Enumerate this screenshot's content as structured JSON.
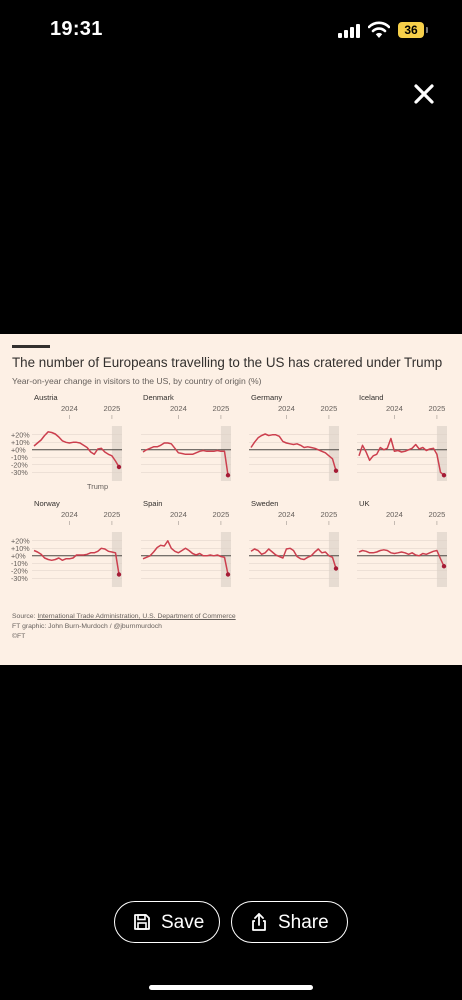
{
  "status_bar": {
    "time": "19:31",
    "battery": "36"
  },
  "chart_card": {
    "title": "The number of Europeans travelling to the US has cratered under Trump",
    "subtitle": "Year-on-year change in visitors to the US, by country of origin (%)",
    "source_prefix": "Source: ",
    "source_link": "International Trade Administration, U.S. Department of Commerce",
    "graphic_credit": "FT graphic: John Burn-Murdoch / @jburnmurdoch",
    "copyright": "©FT"
  },
  "chart_data": {
    "type": "line",
    "y_ticks": [
      "+20%",
      "+10%",
      "+0%",
      "-10%",
      "-20%",
      "-30%"
    ],
    "y_range": [
      -35,
      25
    ],
    "x_tick_labels": [
      "2024",
      "2025"
    ],
    "annotation": "Trump",
    "colors": {
      "line": "#cc3f4e",
      "end_dot": "#a51c36",
      "shade": "#e7dcd2",
      "zero_line": "#4a4643",
      "grid": "#ddd1c6"
    },
    "x": [
      "2023-03",
      "2023-04",
      "2023-05",
      "2023-06",
      "2023-07",
      "2023-08",
      "2023-09",
      "2023-10",
      "2023-11",
      "2023-12",
      "2024-01",
      "2024-02",
      "2024-03",
      "2024-04",
      "2024-05",
      "2024-06",
      "2024-07",
      "2024-08",
      "2024-09",
      "2024-10",
      "2024-11",
      "2024-12",
      "2025-01",
      "2025-02",
      "2025-03"
    ],
    "panels": [
      {
        "country": "Austria",
        "values": [
          5,
          9,
          13,
          19,
          24,
          23,
          21,
          17,
          12,
          10,
          9,
          10,
          10,
          9,
          6,
          3,
          -3,
          -6,
          1,
          2,
          -3,
          -6,
          -8,
          -15,
          -23
        ]
      },
      {
        "country": "Denmark",
        "values": [
          -3,
          0,
          2,
          4,
          4,
          6,
          9,
          9,
          8,
          2,
          -4,
          -5,
          -6,
          -6,
          -6,
          -4,
          -2,
          -1,
          -2,
          -2,
          -2,
          -1,
          -2,
          -2,
          -34
        ]
      },
      {
        "country": "Germany",
        "values": [
          3,
          10,
          16,
          19,
          21,
          19,
          20,
          20,
          18,
          11,
          9,
          8,
          7,
          8,
          6,
          3,
          4,
          3,
          2,
          0,
          -2,
          -4,
          -8,
          -12,
          -28
        ]
      },
      {
        "country": "Iceland",
        "values": [
          -8,
          6,
          -3,
          -14,
          -8,
          -6,
          3,
          0,
          2,
          15,
          -2,
          -1,
          -3,
          -2,
          0,
          2,
          7,
          1,
          3,
          -1,
          1,
          2,
          -6,
          -30,
          -34
        ]
      },
      {
        "country": "Norway",
        "values": [
          7,
          5,
          2,
          -3,
          -5,
          -6,
          -5,
          -3,
          -6,
          -4,
          -4,
          -3,
          1,
          1,
          1,
          2,
          4,
          4,
          6,
          10,
          9,
          6,
          5,
          4,
          -25
        ]
      },
      {
        "country": "Spain",
        "values": [
          -4,
          -2,
          0,
          5,
          11,
          14,
          13,
          20,
          10,
          6,
          4,
          7,
          10,
          7,
          3,
          1,
          3,
          0,
          0,
          1,
          0,
          1,
          -1,
          -2,
          -25
        ]
      },
      {
        "country": "Sweden",
        "values": [
          6,
          9,
          7,
          2,
          4,
          9,
          5,
          1,
          -1,
          -3,
          9,
          10,
          7,
          -1,
          -4,
          -5,
          -2,
          0,
          5,
          9,
          4,
          5,
          0,
          -2,
          -17
        ]
      },
      {
        "country": "UK",
        "values": [
          5,
          7,
          6,
          4,
          4,
          5,
          7,
          8,
          7,
          4,
          3,
          4,
          5,
          4,
          2,
          4,
          1,
          0,
          3,
          2,
          4,
          6,
          7,
          -4,
          -14
        ]
      }
    ]
  },
  "actions": {
    "save_label": "Save",
    "share_label": "Share"
  }
}
